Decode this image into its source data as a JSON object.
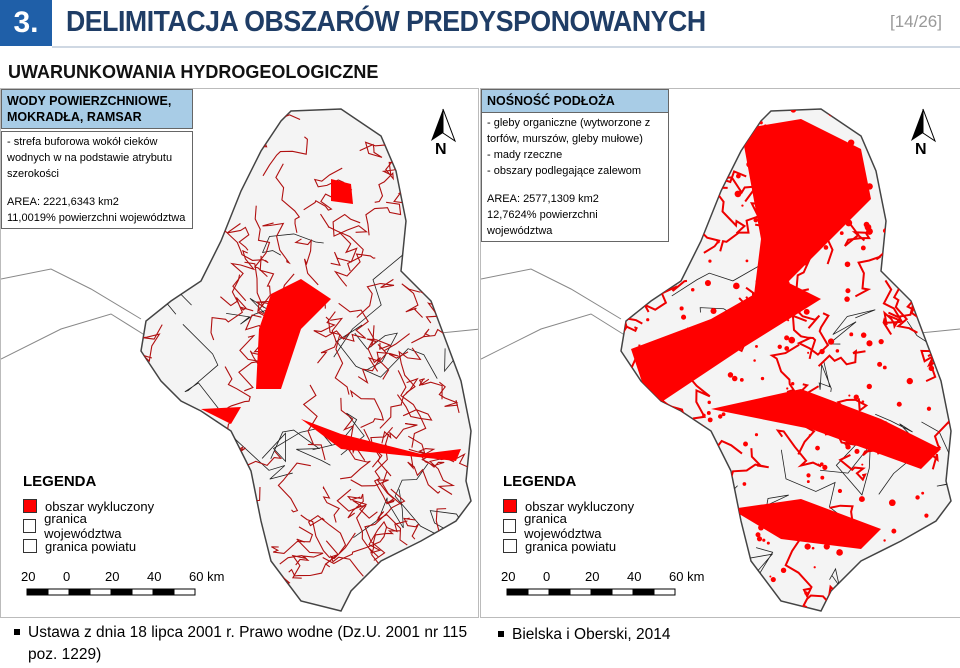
{
  "header": {
    "number": "3.",
    "title": "DELIMITACJA OBSZARÓW PREDYSPONOWANYCH",
    "page": "[14/26]"
  },
  "subtitle": "UWARUNKOWANIA HYDROGEOLOGICZNE",
  "maps": [
    {
      "title_lines": [
        "WODY POWIERZCHNIOWE,",
        "MOKRADŁA, RAMSAR"
      ],
      "description_lines": [
        " - strefa buforowa wokół cieków",
        "wodnych w na podstawie atrybutu",
        "szerokości"
      ],
      "area_lines": [
        "AREA: 2221,6343 km2",
        "11,0019% powierzchni województwa"
      ],
      "north": "N",
      "legend": {
        "title": "LEGENDA",
        "items": [
          "obszar wykluczony",
          "granica województwa",
          "granica powiatu"
        ]
      },
      "scale": [
        "20",
        "0",
        "20",
        "40",
        "60 km"
      ]
    },
    {
      "title_lines": [
        "NOŚNOŚĆ PODŁOŻA"
      ],
      "description_lines": [
        " - gleby organiczne (wytworzone z",
        "torfów, murszów, gleby mułowe)",
        " - mady rzeczne",
        " - obszary podlegające zalewom"
      ],
      "area_lines": [
        "AREA: 2577,1309 km2",
        "12,7624% powierzchni województwa"
      ],
      "north": "N",
      "legend": {
        "title": "LEGENDA",
        "items": [
          "obszar wykluczony",
          "granica województwa",
          "granica powiatu"
        ]
      },
      "scale": [
        "20",
        "0",
        "20",
        "40",
        "60 km"
      ]
    }
  ],
  "footer": [
    "Ustawa z dnia 18 lipca 2001 r. Prawo wodne (Dz.U. 2001 nr 115 poz. 1229)",
    "Bielska i Oberski, 2014"
  ]
}
